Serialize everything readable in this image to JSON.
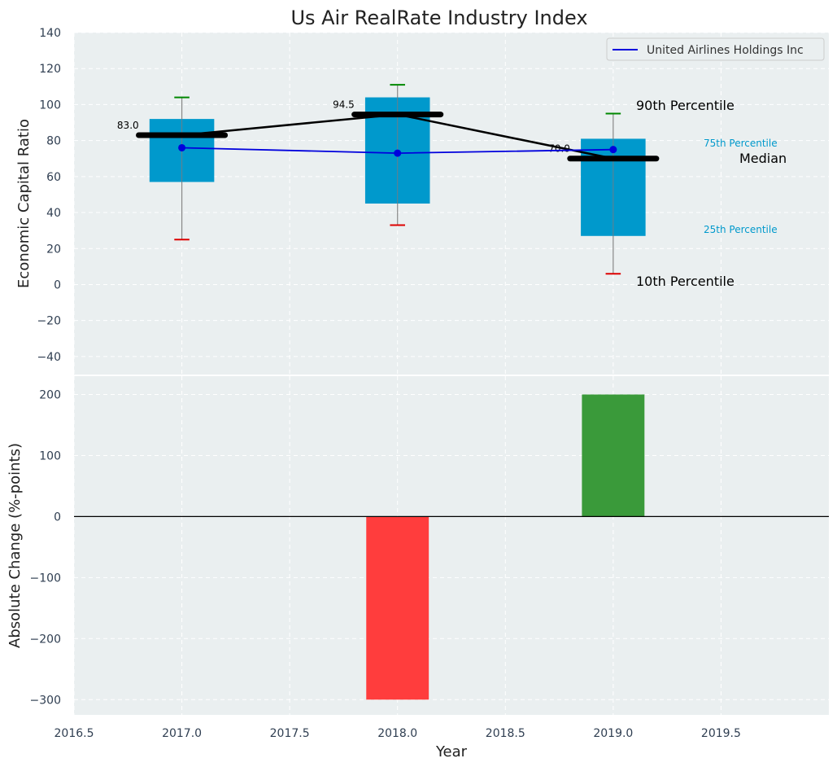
{
  "chart_data": [
    {
      "type": "boxplot",
      "title": "Us Air RealRate Industry Index",
      "xlabel": "",
      "ylabel": "Economic Capital Ratio",
      "xlim": [
        2016.5,
        2020.0
      ],
      "ylim": [
        -50,
        140
      ],
      "xticks": [
        "2016.5",
        "2017.0",
        "2017.5",
        "2018.0",
        "2018.5",
        "2019.0",
        "2019.5"
      ],
      "yticks": [
        "−40",
        "−20",
        "0",
        "20",
        "40",
        "60",
        "80",
        "100",
        "120",
        "140"
      ],
      "x": [
        2017,
        2018,
        2019
      ],
      "p10": [
        25,
        33,
        6
      ],
      "p25": [
        57,
        45,
        27
      ],
      "median": [
        83.0,
        94.5,
        70.0
      ],
      "p75": [
        92,
        104,
        81
      ],
      "p90": [
        104,
        111,
        95
      ],
      "median_labels": [
        "83.0",
        "94.5",
        "70.0"
      ],
      "company_series": {
        "name": "United Airlines Holdings Inc",
        "values": [
          76,
          73,
          75
        ]
      },
      "legend": {
        "position": "top-right",
        "entries": [
          "United Airlines Holdings Inc"
        ]
      },
      "annotations": {
        "p90": "90th Percentile",
        "p75": "75th Percentile",
        "median": "Median",
        "p25": "25th Percentile",
        "p10": "10th Percentile"
      },
      "grid": true
    },
    {
      "type": "bar",
      "xlabel": "Year",
      "ylabel": "Absolute Change (%-points)",
      "xlim": [
        2016.5,
        2020.0
      ],
      "ylim": [
        -325,
        230
      ],
      "yticks": [
        "−300",
        "−200",
        "−100",
        "0",
        "100",
        "200"
      ],
      "x": [
        2017,
        2018,
        2019
      ],
      "values": [
        0,
        -300,
        200
      ],
      "grid": true
    }
  ],
  "colors": {
    "background": "#eaeff0",
    "box": "#0099cc",
    "median": "#000000",
    "company_line": "#0000dd",
    "p90_cap": "#008800",
    "p10_cap": "#dd0000",
    "positive": "#3a9a3a",
    "negative": "#ff3d3d",
    "text": "#2f3e51",
    "annot_blue": "#0099cc"
  }
}
